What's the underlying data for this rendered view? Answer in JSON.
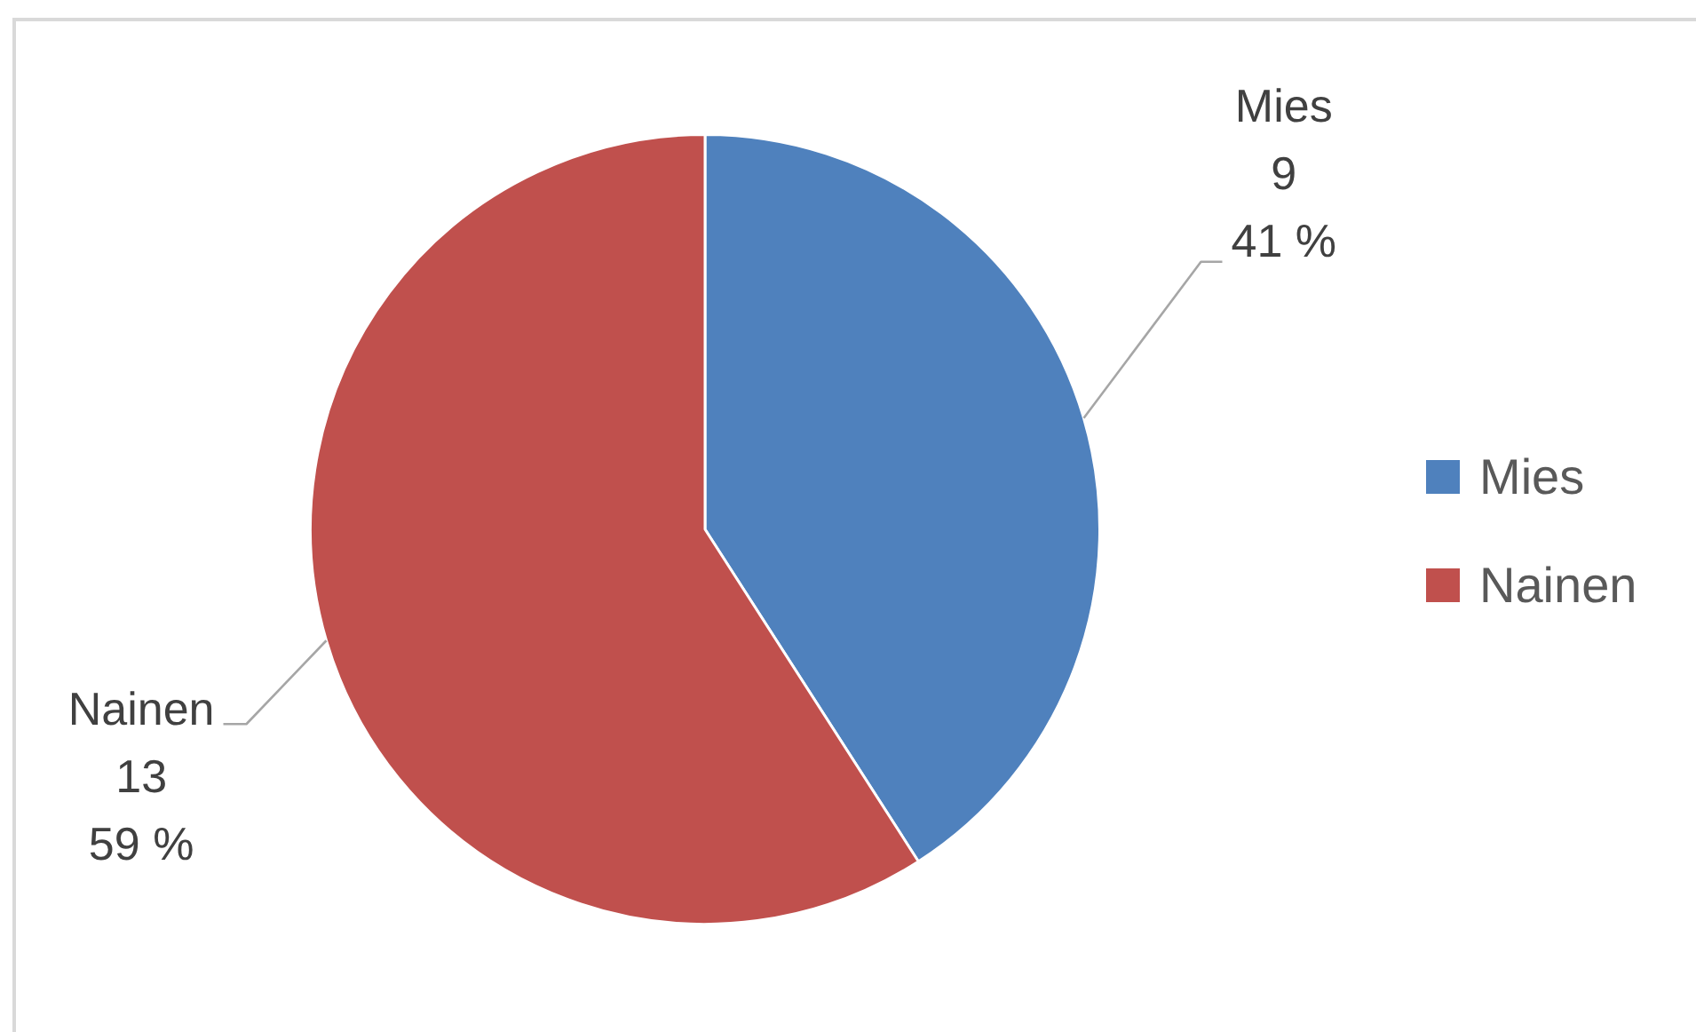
{
  "chart_data": {
    "type": "pie",
    "categories": [
      "Mies",
      "Nainen"
    ],
    "values": [
      9,
      13
    ],
    "colors": [
      "#4f81bd",
      "#c0504d"
    ],
    "value_labels": [
      "9\n41 %",
      "13\n59 %"
    ],
    "legend": "right"
  }
}
